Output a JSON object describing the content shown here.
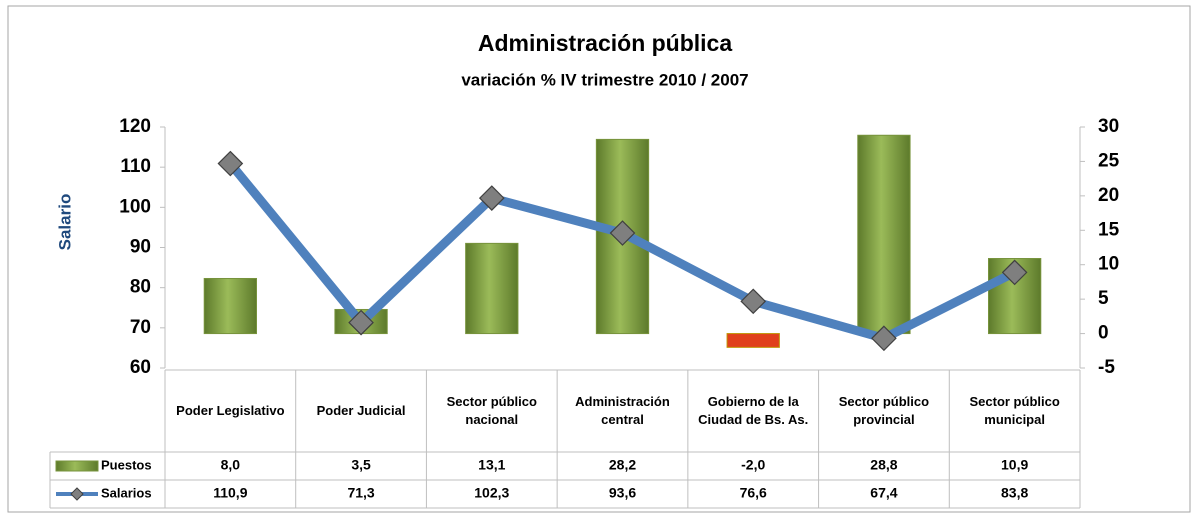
{
  "chart_data": {
    "type": "combo",
    "title": "Administración pública",
    "subtitle": "variación % IV trimestre 2010 / 2007",
    "y_label": "Salario",
    "categories": [
      "Poder Legislativo",
      "Poder Judicial",
      "Sector público nacional",
      "Administración central",
      "Gobierno de la Ciudad de Bs. As.",
      "Sector público provincial",
      "Sector público municipal"
    ],
    "series": [
      {
        "name": "Puestos",
        "type": "bar",
        "axis": "y2",
        "color": "#77933c",
        "negative_color": "#e0401c",
        "values": [
          8.0,
          3.5,
          13.1,
          28.2,
          -2.0,
          28.8,
          10.9
        ],
        "value_labels": [
          "8,0",
          "3,5",
          "13,1",
          "28,2",
          "-2,0",
          "28,8",
          "10,9"
        ]
      },
      {
        "name": "Salarios",
        "type": "line",
        "axis": "y",
        "color": "#4f81bd",
        "marker_color": "#7f7f7f",
        "values": [
          110.9,
          71.3,
          102.3,
          93.6,
          76.6,
          67.4,
          83.8
        ],
        "value_labels": [
          "110,9",
          "71,3",
          "102,3",
          "93,6",
          "76,6",
          "67,4",
          "83,8"
        ]
      }
    ],
    "ylim": [
      60,
      120
    ],
    "yticks": [
      60,
      70,
      80,
      90,
      100,
      110,
      120
    ],
    "y2lim": [
      -5,
      30
    ],
    "y2ticks": [
      -5,
      0,
      5,
      10,
      15,
      20,
      25,
      30
    ],
    "grid": false
  }
}
